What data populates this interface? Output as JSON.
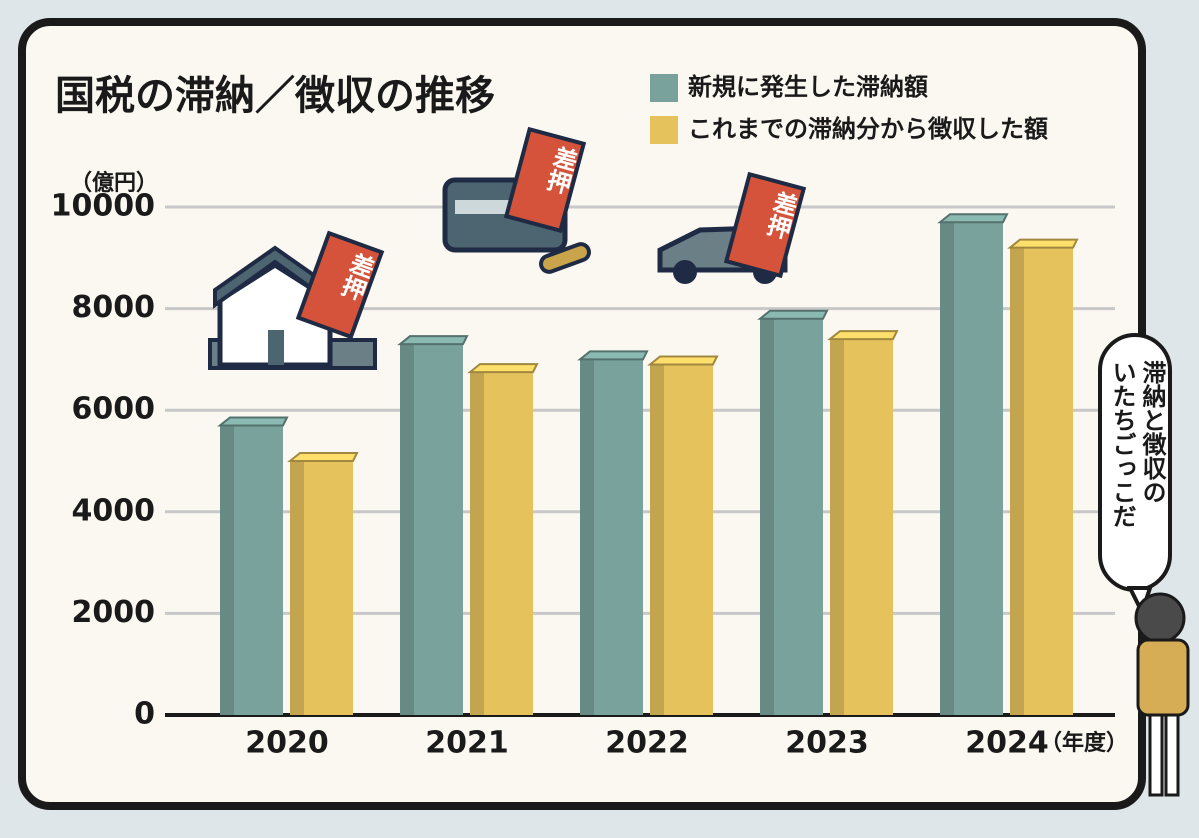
{
  "chart_data": {
    "type": "bar",
    "title": "国税の滞納／徴収の推移",
    "y_unit": "（億円）",
    "x_unit": "（年度）",
    "categories": [
      "2020",
      "2021",
      "2022",
      "2023",
      "2024"
    ],
    "series": [
      {
        "name": "新規に発生した滞納額",
        "color": "#79a29c",
        "values": [
          5700,
          7300,
          7000,
          7800,
          9700
        ]
      },
      {
        "name": "これまでの滞納分から徴収した額",
        "color": "#e6c25d",
        "values": [
          5000,
          6750,
          6900,
          7400,
          9200
        ]
      }
    ],
    "ylim": [
      0,
      10000
    ],
    "yticks": [
      0,
      2000,
      4000,
      6000,
      8000,
      10000
    ],
    "grid": true,
    "annotations": [
      "差押",
      "差押",
      "差押"
    ],
    "speech_bubble": [
      "滞納と徴収の",
      "いたちごっこだ"
    ]
  }
}
